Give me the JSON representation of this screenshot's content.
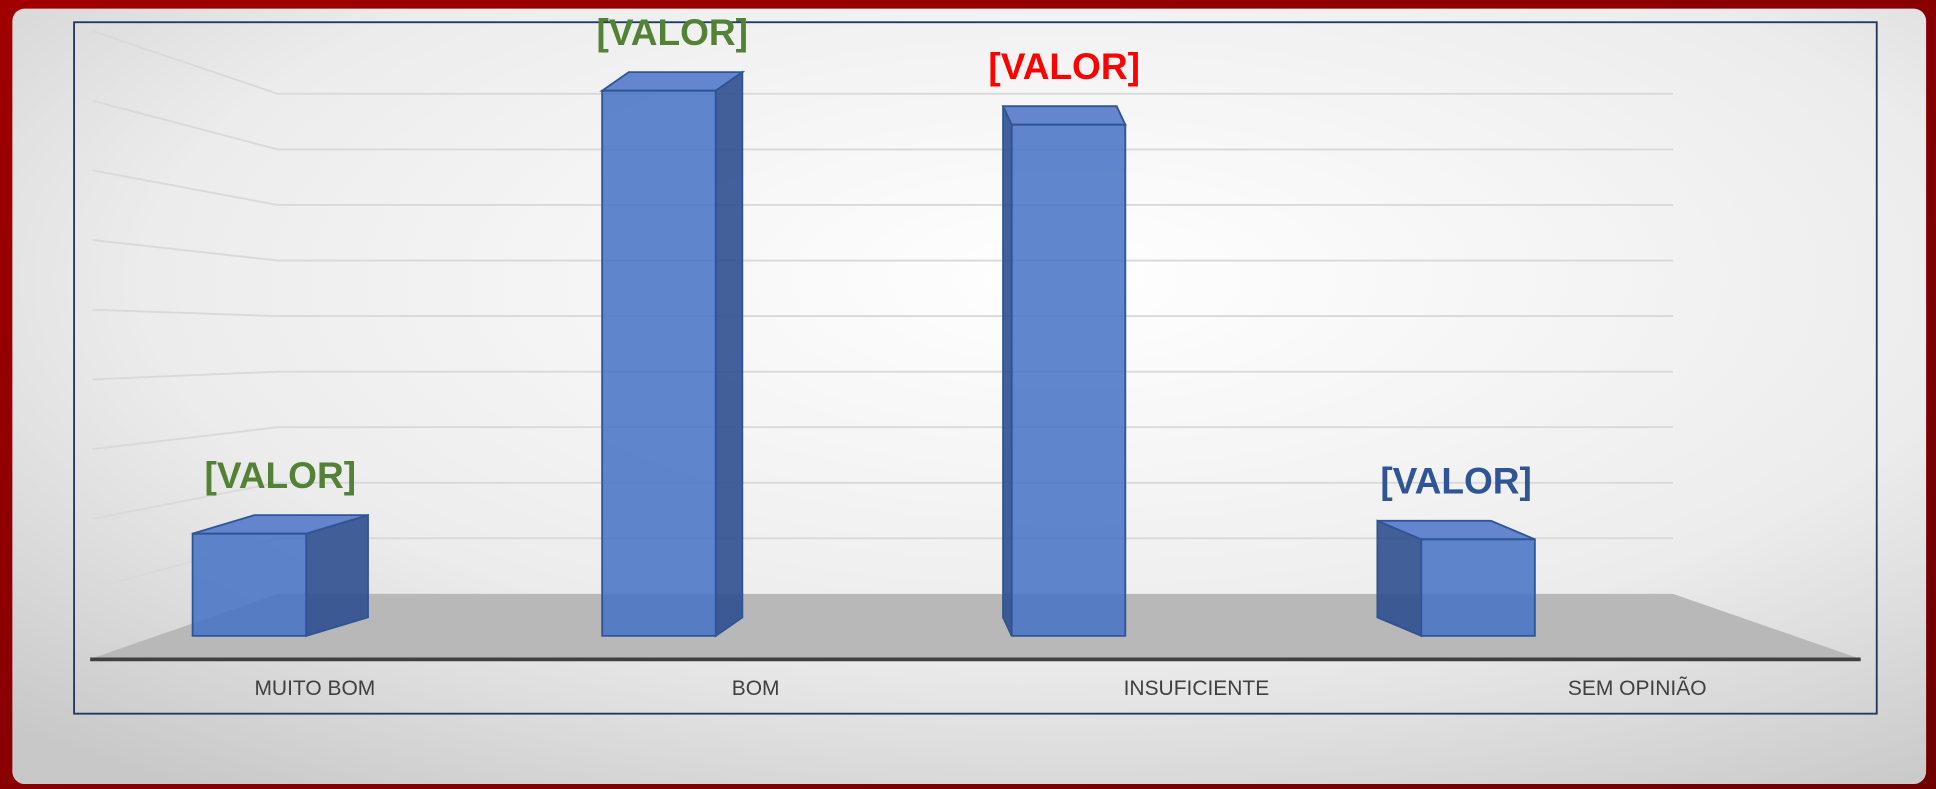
{
  "chart_data": {
    "type": "bar3d",
    "categories": [
      "MUITO BOM",
      "BOM",
      "INSUFICIENTE",
      "SEM OPINIÃO"
    ],
    "values": [
      1.8,
      9.6,
      9.0,
      1.7
    ],
    "value_labels": [
      "[VALOR]",
      "[VALOR]",
      "[VALOR]",
      "[VALOR]"
    ],
    "label_colors": [
      "#538135",
      "#538135",
      "#ff0000",
      "#2f5597"
    ],
    "color": "#4472c4",
    "ylim": [
      0,
      10
    ],
    "yticks": [
      1,
      2,
      3,
      4,
      5,
      6,
      7,
      8,
      9
    ],
    "tick_labels": false,
    "grid": true
  }
}
